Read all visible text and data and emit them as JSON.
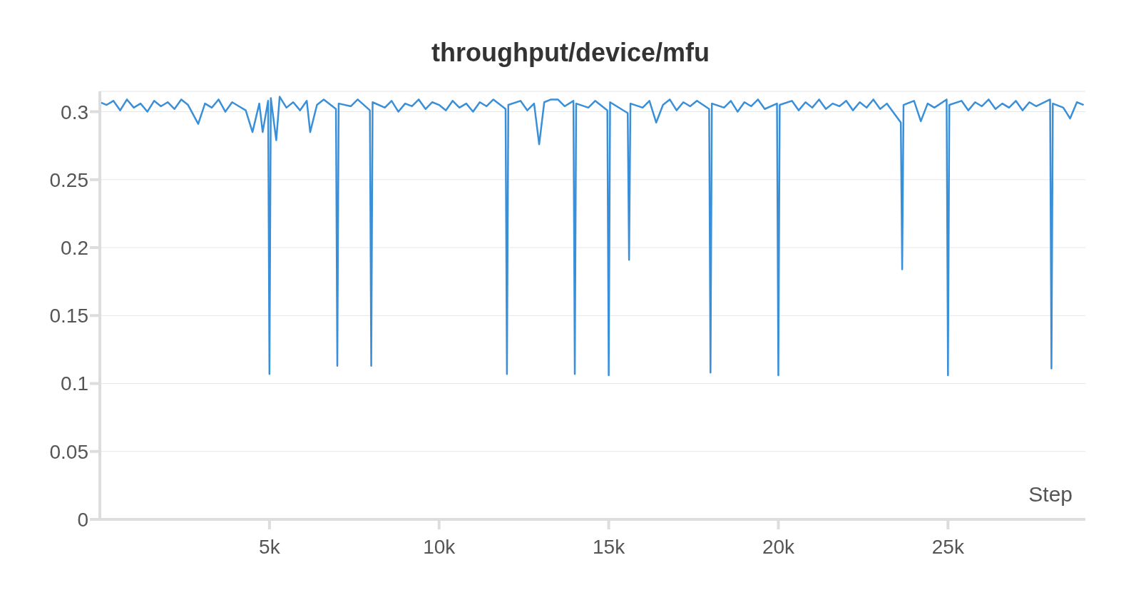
{
  "chart_data": {
    "type": "line",
    "title": "throughput/device/mfu",
    "xlabel": "Step",
    "series": [
      {
        "color": "#3a8fd9",
        "x": [
          0,
          200,
          400,
          600,
          800,
          1000,
          1200,
          1400,
          1600,
          1800,
          2000,
          2200,
          2400,
          2600,
          2900,
          3100,
          3300,
          3500,
          3700,
          3900,
          4100,
          4300,
          4500,
          4700,
          4800,
          4960,
          5000,
          5040,
          5200,
          5300,
          5500,
          5700,
          5900,
          6100,
          6200,
          6400,
          6600,
          6960,
          7000,
          7040,
          7400,
          7600,
          7960,
          8000,
          8040,
          8400,
          8600,
          8800,
          9000,
          9200,
          9400,
          9600,
          9800,
          10000,
          10200,
          10400,
          10600,
          10800,
          11000,
          11200,
          11400,
          11600,
          11960,
          12000,
          12040,
          12400,
          12600,
          12800,
          12950,
          13100,
          13300,
          13500,
          13700,
          13960,
          14000,
          14040,
          14400,
          14600,
          14960,
          15000,
          15040,
          15560,
          15600,
          15640,
          16000,
          16200,
          16400,
          16600,
          16800,
          17000,
          17200,
          17400,
          17600,
          17960,
          18000,
          18040,
          18400,
          18600,
          18800,
          19000,
          19200,
          19400,
          19600,
          19960,
          20000,
          20040,
          20400,
          20600,
          20800,
          21000,
          21200,
          21400,
          21600,
          21800,
          22000,
          22200,
          22400,
          22600,
          22800,
          23000,
          23200,
          23610,
          23650,
          23690,
          24000,
          24200,
          24400,
          24600,
          24960,
          25000,
          25040,
          25400,
          25600,
          25800,
          26000,
          26200,
          26400,
          26600,
          26800,
          27000,
          27200,
          27400,
          27600,
          28010,
          28050,
          28090,
          28400,
          28600,
          28800,
          29000
        ],
        "values": [
          0.307,
          0.305,
          0.308,
          0.301,
          0.309,
          0.303,
          0.306,
          0.3,
          0.308,
          0.304,
          0.307,
          0.302,
          0.309,
          0.305,
          0.291,
          0.306,
          0.303,
          0.309,
          0.3,
          0.307,
          0.304,
          0.301,
          0.285,
          0.306,
          0.285,
          0.308,
          0.107,
          0.31,
          0.279,
          0.311,
          0.303,
          0.307,
          0.301,
          0.308,
          0.285,
          0.305,
          0.309,
          0.302,
          0.113,
          0.306,
          0.304,
          0.309,
          0.301,
          0.113,
          0.307,
          0.303,
          0.308,
          0.3,
          0.306,
          0.304,
          0.309,
          0.302,
          0.307,
          0.305,
          0.301,
          0.308,
          0.303,
          0.306,
          0.3,
          0.307,
          0.304,
          0.309,
          0.302,
          0.107,
          0.305,
          0.308,
          0.301,
          0.306,
          0.276,
          0.307,
          0.309,
          0.309,
          0.304,
          0.308,
          0.107,
          0.306,
          0.303,
          0.308,
          0.301,
          0.106,
          0.307,
          0.299,
          0.191,
          0.306,
          0.303,
          0.308,
          0.292,
          0.305,
          0.309,
          0.301,
          0.307,
          0.304,
          0.308,
          0.302,
          0.108,
          0.306,
          0.303,
          0.308,
          0.3,
          0.307,
          0.304,
          0.309,
          0.302,
          0.306,
          0.106,
          0.305,
          0.308,
          0.301,
          0.307,
          0.303,
          0.309,
          0.302,
          0.306,
          0.304,
          0.308,
          0.301,
          0.307,
          0.303,
          0.309,
          0.302,
          0.306,
          0.292,
          0.184,
          0.305,
          0.308,
          0.293,
          0.306,
          0.303,
          0.309,
          0.106,
          0.305,
          0.308,
          0.301,
          0.307,
          0.304,
          0.309,
          0.302,
          0.306,
          0.303,
          0.308,
          0.301,
          0.307,
          0.304,
          0.309,
          0.111,
          0.306,
          0.303,
          0.295,
          0.307,
          0.305
        ]
      }
    ],
    "xlim": [
      0,
      29050
    ],
    "xticks": [
      {
        "value": 5000,
        "label": "5k"
      },
      {
        "value": 10000,
        "label": "10k"
      },
      {
        "value": 15000,
        "label": "15k"
      },
      {
        "value": 20000,
        "label": "20k"
      },
      {
        "value": 25000,
        "label": "25k"
      }
    ],
    "ylim": [
      0,
      0.315
    ],
    "yticks": [
      0,
      0.05,
      0.1,
      0.15,
      0.2,
      0.25,
      0.3
    ],
    "grid": "y",
    "marker": "none",
    "line_style": "solid"
  }
}
